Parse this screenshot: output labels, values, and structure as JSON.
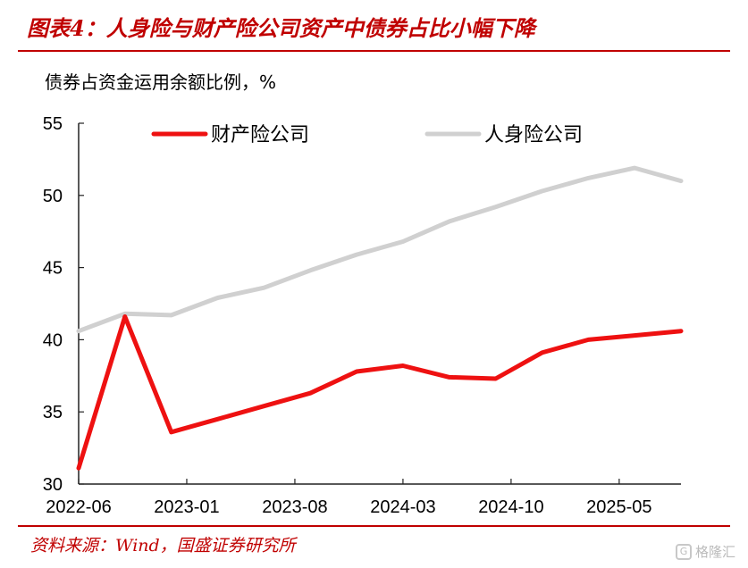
{
  "header": {
    "title": "图表4：人身险与财产险公司资产中债券占比小幅下降"
  },
  "footer": {
    "source": "资料来源：Wind，国盛证券研究所",
    "watermark_text": "格隆汇",
    "watermark_icon": "G"
  },
  "colors": {
    "accent": "#c00000",
    "property": "#ee1111",
    "life": "#d0d0d0"
  },
  "chart_data": {
    "type": "line",
    "ylabel": "债券占资金运用余额比例，%",
    "ylim": [
      30,
      55
    ],
    "yticks": [
      30,
      35,
      40,
      45,
      50,
      55
    ],
    "xlim": [
      "2022-06",
      "2025-09"
    ],
    "xticks": [
      "2022-06",
      "2023-01",
      "2023-08",
      "2024-03",
      "2024-10",
      "2025-05"
    ],
    "grid": false,
    "legend": "top",
    "series": [
      {
        "name": "财产险公司",
        "color": "#ee1111",
        "points": [
          [
            "2022-06",
            31.1
          ],
          [
            "2022-09",
            41.6
          ],
          [
            "2022-12",
            33.6
          ],
          [
            "2023-03",
            34.5
          ],
          [
            "2023-06",
            35.4
          ],
          [
            "2023-09",
            36.3
          ],
          [
            "2023-12",
            37.8
          ],
          [
            "2024-03",
            38.2
          ],
          [
            "2024-06",
            37.4
          ],
          [
            "2024-09",
            37.3
          ],
          [
            "2024-12",
            39.1
          ],
          [
            "2025-03",
            40.0
          ],
          [
            "2025-06",
            40.3
          ],
          [
            "2025-09",
            40.6
          ]
        ]
      },
      {
        "name": "人身险公司",
        "color": "#d0d0d0",
        "points": [
          [
            "2022-06",
            40.6
          ],
          [
            "2022-09",
            41.8
          ],
          [
            "2022-12",
            41.7
          ],
          [
            "2023-03",
            42.9
          ],
          [
            "2023-06",
            43.6
          ],
          [
            "2023-09",
            44.8
          ],
          [
            "2023-12",
            45.9
          ],
          [
            "2024-03",
            46.8
          ],
          [
            "2024-06",
            48.2
          ],
          [
            "2024-09",
            49.2
          ],
          [
            "2024-12",
            50.3
          ],
          [
            "2025-03",
            51.2
          ],
          [
            "2025-06",
            51.9
          ],
          [
            "2025-09",
            51.0
          ]
        ]
      }
    ]
  }
}
